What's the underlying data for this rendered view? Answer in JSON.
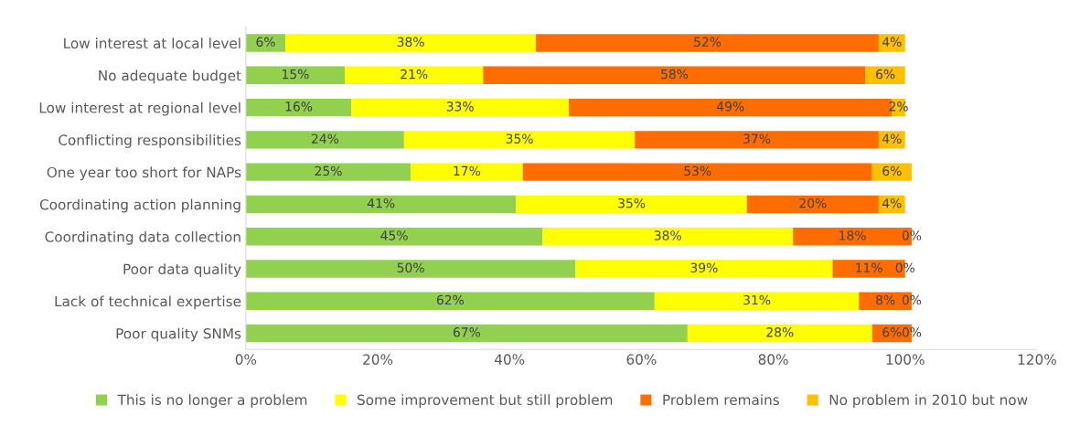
{
  "chart_data": {
    "type": "bar",
    "orientation": "horizontal",
    "stacked": true,
    "grid": false,
    "legend": "bottom",
    "categories": [
      "Low interest at local level",
      "No adequate budget",
      "Low interest at regional level",
      "Conflicting responsibilities",
      "One year too short for NAPs",
      "Coordinating action planning",
      "Coordinating data collection",
      "Poor data quality",
      "Lack of technical expertise",
      "Poor quality SNMs"
    ],
    "series": [
      {
        "name": "This is no longer a problem",
        "color": "#92d050",
        "values": [
          6,
          15,
          16,
          24,
          25,
          41,
          45,
          50,
          62,
          67
        ],
        "value_labels": [
          "6%",
          "15%",
          "16%",
          "24%",
          "25%",
          "41%",
          "45%",
          "50%",
          "62%",
          "67%"
        ]
      },
      {
        "name": "Some improvement but still problem",
        "color": "#ffff00",
        "values": [
          38,
          21,
          33,
          35,
          17,
          35,
          38,
          39,
          31,
          28
        ],
        "value_labels": [
          "38%",
          "21%",
          "33%",
          "35%",
          "17%",
          "35%",
          "38%",
          "39%",
          "31%",
          "28%"
        ]
      },
      {
        "name": "Problem remains",
        "color": "#ff6d01",
        "values": [
          52,
          58,
          49,
          37,
          53,
          20,
          18,
          11,
          8,
          6
        ],
        "value_labels": [
          "52%",
          "58%",
          "49%",
          "37%",
          "53%",
          "20%",
          "18%",
          "11%",
          "8%",
          "6%"
        ]
      },
      {
        "name": "No problem in 2010 but now",
        "color": "#ffc000",
        "values": [
          4,
          6,
          2,
          4,
          6,
          4,
          0,
          0,
          0,
          0
        ],
        "value_labels": [
          "4%",
          "6%",
          "2%",
          "4%",
          "6%",
          "4%",
          "0%",
          "0%",
          "0%",
          "0%"
        ]
      }
    ],
    "xlim": [
      0,
      120
    ],
    "xticks": [
      {
        "value": 0,
        "label": "0%"
      },
      {
        "value": 20,
        "label": "20%"
      },
      {
        "value": 40,
        "label": "40%"
      },
      {
        "value": 60,
        "label": "60%"
      },
      {
        "value": 80,
        "label": "80%"
      },
      {
        "value": 100,
        "label": "100%"
      },
      {
        "value": 120,
        "label": "120%"
      }
    ]
  }
}
